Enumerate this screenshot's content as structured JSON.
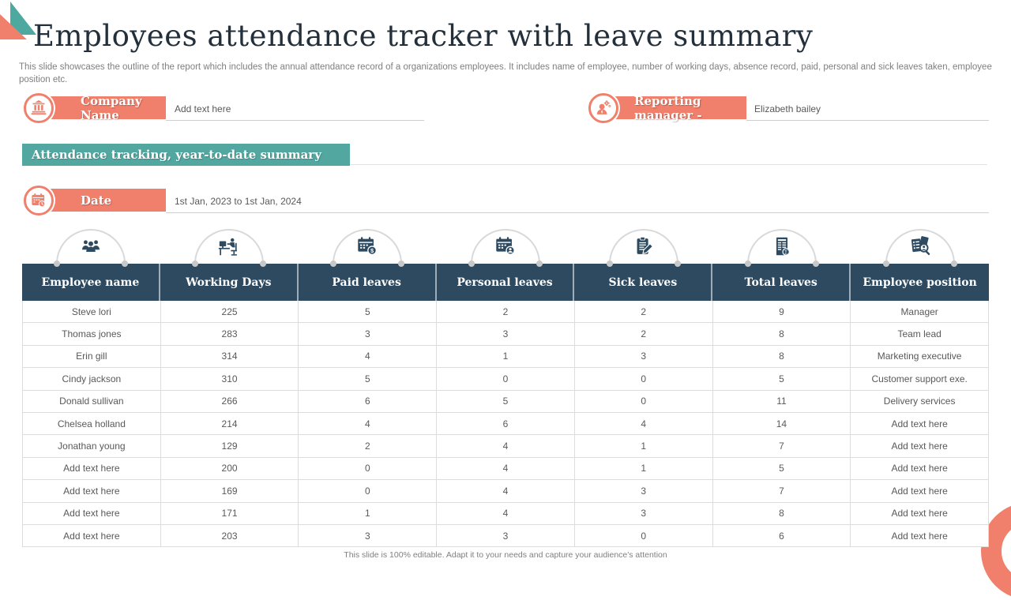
{
  "slide": {
    "title": "Employees attendance tracker with leave summary",
    "subtitle": "This slide showcases the outline of the report which includes the annual attendance record of a organizations employees. It includes name of employee, number of working days, absence record, paid, personal and sick leaves taken, employee position etc.",
    "footer": "This slide is 100% editable.  Adapt it to your needs and capture your audience's attention"
  },
  "fields": {
    "company": {
      "label": "Company Name",
      "value": "Add text here",
      "icon": "building-icon"
    },
    "manager": {
      "label": "Reporting manager -",
      "value": "Elizabeth bailey",
      "icon": "manager-icon"
    },
    "date": {
      "label": "Date",
      "value": "1st Jan, 2023 to 1st Jan, 2024",
      "icon": "calendar-clock-icon"
    }
  },
  "banner": {
    "label": "Attendance tracking, year-to-date summary"
  },
  "table": {
    "placeholder": "Add text here",
    "columns": [
      {
        "label": "Employee name",
        "icon": "team-icon"
      },
      {
        "label": "Working Days",
        "icon": "workstation-icon"
      },
      {
        "label": "Paid leaves",
        "icon": "paid-calendar-icon"
      },
      {
        "label": "Personal leaves",
        "icon": "personal-calendar-icon"
      },
      {
        "label": "Sick leaves",
        "icon": "clipboard-pencil-icon"
      },
      {
        "label": "Total leaves",
        "icon": "report-icon"
      },
      {
        "label": "Employee position",
        "icon": "position-search-icon"
      }
    ],
    "rows": [
      [
        "Steve lori",
        "225",
        "5",
        "2",
        "2",
        "9",
        "Manager"
      ],
      [
        "Thomas jones",
        "283",
        "3",
        "3",
        "2",
        "8",
        "Team lead"
      ],
      [
        "Erin gill",
        "314",
        "4",
        "1",
        "3",
        "8",
        "Marketing executive"
      ],
      [
        "Cindy jackson",
        "310",
        "5",
        "0",
        "0",
        "5",
        "Customer support exe."
      ],
      [
        "Donald sullivan",
        "266",
        "6",
        "5",
        "0",
        "11",
        "Delivery services"
      ],
      [
        "Chelsea holland",
        "214",
        "4",
        "6",
        "4",
        "14",
        "Add text here"
      ],
      [
        "Jonathan young",
        "129",
        "2",
        "4",
        "1",
        "7",
        "Add text here"
      ],
      [
        "Add text here",
        "200",
        "0",
        "4",
        "1",
        "5",
        "Add text here"
      ],
      [
        "Add text here",
        "169",
        "0",
        "4",
        "3",
        "7",
        "Add text here"
      ],
      [
        "Add text here",
        "171",
        "1",
        "4",
        "3",
        "8",
        "Add text here"
      ],
      [
        "Add text here",
        "203",
        "3",
        "3",
        "0",
        "6",
        "Add text here"
      ]
    ]
  },
  "colors": {
    "coral": "#f0806c",
    "teal": "#52a7a1",
    "navy": "#2d4a60",
    "border_gray": "#dcdcdc",
    "text_gray": "#595959"
  }
}
